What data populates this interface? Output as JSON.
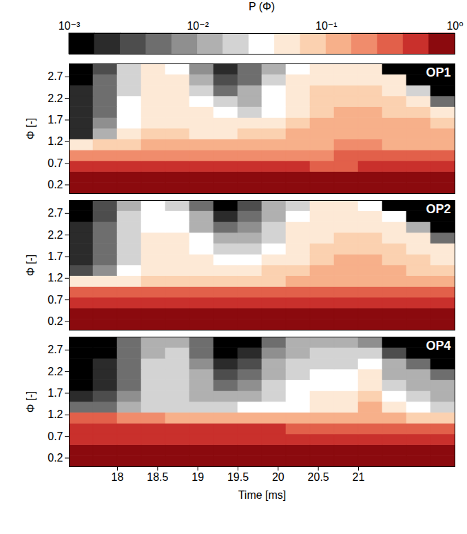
{
  "chart_data": {
    "type": "heatmap",
    "xlabel": "Time [ms]",
    "ylabel": "Φ [-]",
    "xlim": [
      17.4,
      22.2
    ],
    "ylim": [
      0,
      3
    ],
    "xticks": [
      18,
      18.5,
      19,
      19.5,
      20,
      20.5,
      21
    ],
    "yticks": [
      0.2,
      0.7,
      1.2,
      1.7,
      2.2,
      2.7
    ],
    "x_edges": [
      17.4,
      17.7,
      18,
      18.3,
      18.6,
      18.9,
      19.2,
      19.5,
      19.8,
      20.1,
      20.4,
      20.7,
      21,
      21.3,
      21.6,
      21.9,
      22.2
    ],
    "y_edges": [
      0,
      0.25,
      0.5,
      0.75,
      1,
      1.25,
      1.5,
      1.75,
      2,
      2.25,
      2.5,
      2.75,
      3
    ],
    "colorbar": {
      "label": "P (Φ)",
      "log": true,
      "range": [
        0.001,
        1
      ],
      "ticks": [
        {
          "value": 0.001,
          "label": "10⁻³"
        },
        {
          "value": 0.01,
          "label": "10⁻²"
        },
        {
          "value": 0.1,
          "label": "10⁻¹"
        },
        {
          "value": 1,
          "label": "10⁰"
        }
      ],
      "levels": [
        0.001,
        0.00158,
        0.00251,
        0.00398,
        0.00631,
        0.01,
        0.0158,
        0.0251,
        0.0398,
        0.0631,
        0.1,
        0.158,
        0.251,
        0.398,
        0.631,
        1
      ],
      "colors": [
        "#000000",
        "#2b2b2b",
        "#4d4d4d",
        "#6e6e6e",
        "#8f8f8f",
        "#b0b0b0",
        "#d3d3d3",
        "#ffffff",
        "#fde9d6",
        "#fbd1b0",
        "#f7b08a",
        "#f08c6c",
        "#e2604a",
        "#c9302c",
        "#8b0a0e"
      ]
    },
    "panels": [
      {
        "title": "OP1",
        "tick_labels": "y",
        "cells": [
          [
            0.8,
            0.8,
            0.8,
            0.8,
            0.8,
            0.8,
            0.8,
            0.8,
            0.8,
            0.8,
            0.8,
            0.8,
            0.8,
            0.8,
            0.8,
            0.8
          ],
          [
            0.7,
            0.7,
            0.7,
            0.7,
            0.7,
            0.7,
            0.7,
            0.7,
            0.7,
            0.7,
            0.7,
            0.7,
            0.7,
            0.7,
            0.7,
            0.7
          ],
          [
            0.5,
            0.5,
            0.45,
            0.45,
            0.45,
            0.45,
            0.4,
            0.4,
            0.4,
            0.4,
            0.35,
            0.35,
            0.4,
            0.4,
            0.4,
            0.4
          ],
          [
            0.2,
            0.2,
            0.2,
            0.22,
            0.22,
            0.22,
            0.25,
            0.25,
            0.25,
            0.25,
            0.25,
            0.3,
            0.3,
            0.3,
            0.3,
            0.3
          ],
          [
            0.06,
            0.07,
            0.09,
            0.1,
            0.1,
            0.1,
            0.1,
            0.1,
            0.12,
            0.12,
            0.15,
            0.18,
            0.18,
            0.15,
            0.15,
            0.15
          ],
          [
            0.002,
            0.01,
            0.04,
            0.07,
            0.07,
            0.06,
            0.06,
            0.07,
            0.08,
            0.1,
            0.12,
            0.15,
            0.15,
            0.12,
            0.12,
            0.1
          ],
          [
            0.002,
            0.008,
            0.035,
            0.06,
            0.06,
            0.055,
            0.045,
            0.04,
            0.04,
            0.07,
            0.1,
            0.12,
            0.12,
            0.1,
            0.1,
            0.08
          ],
          [
            0.002,
            0.006,
            0.03,
            0.055,
            0.055,
            0.045,
            0.03,
            0.025,
            0.03,
            0.06,
            0.09,
            0.1,
            0.1,
            0.08,
            0.08,
            0.06
          ],
          [
            0.002,
            0.005,
            0.03,
            0.05,
            0.05,
            0.035,
            0.02,
            0.015,
            0.03,
            0.06,
            0.08,
            0.08,
            0.08,
            0.07,
            0.06,
            0.005
          ],
          [
            0.002,
            0.005,
            0.025,
            0.05,
            0.045,
            0.02,
            0.006,
            0.01,
            0.03,
            0.05,
            0.07,
            0.07,
            0.07,
            0.06,
            0.02,
            0.0005
          ],
          [
            0.001,
            0.004,
            0.025,
            0.045,
            0.04,
            0.012,
            0.003,
            0.006,
            0.02,
            0.04,
            0.06,
            0.06,
            0.06,
            0.04,
            0.0005,
            0.0005
          ],
          [
            0.001,
            0.003,
            0.02,
            0.04,
            0.035,
            0.008,
            0.002,
            0.004,
            0.015,
            0.03,
            0.05,
            0.05,
            0.05,
            0.0005,
            0.0005,
            0.0005
          ]
        ]
      },
      {
        "title": "OP2",
        "tick_labels": "y",
        "cells": [
          [
            0.8,
            0.8,
            0.8,
            0.8,
            0.8,
            0.8,
            0.8,
            0.8,
            0.8,
            0.8,
            0.8,
            0.8,
            0.8,
            0.8,
            0.8,
            0.8
          ],
          [
            0.7,
            0.7,
            0.7,
            0.7,
            0.7,
            0.7,
            0.7,
            0.7,
            0.7,
            0.7,
            0.7,
            0.7,
            0.7,
            0.7,
            0.7,
            0.7
          ],
          [
            0.5,
            0.5,
            0.5,
            0.5,
            0.5,
            0.5,
            0.5,
            0.5,
            0.5,
            0.5,
            0.5,
            0.5,
            0.5,
            0.5,
            0.5,
            0.5
          ],
          [
            0.3,
            0.3,
            0.3,
            0.3,
            0.28,
            0.28,
            0.28,
            0.28,
            0.28,
            0.28,
            0.28,
            0.3,
            0.3,
            0.3,
            0.3,
            0.3
          ],
          [
            0.04,
            0.05,
            0.06,
            0.07,
            0.07,
            0.07,
            0.07,
            0.08,
            0.09,
            0.1,
            0.12,
            0.14,
            0.14,
            0.12,
            0.1,
            0.1
          ],
          [
            0.003,
            0.008,
            0.03,
            0.05,
            0.05,
            0.05,
            0.05,
            0.06,
            0.07,
            0.08,
            0.1,
            0.12,
            0.12,
            0.1,
            0.08,
            0.08
          ],
          [
            0.002,
            0.006,
            0.025,
            0.045,
            0.045,
            0.04,
            0.035,
            0.035,
            0.04,
            0.06,
            0.08,
            0.1,
            0.1,
            0.08,
            0.07,
            0.06
          ],
          [
            0.002,
            0.005,
            0.025,
            0.04,
            0.04,
            0.035,
            0.025,
            0.02,
            0.03,
            0.05,
            0.07,
            0.08,
            0.08,
            0.07,
            0.06,
            0.05
          ],
          [
            0.002,
            0.004,
            0.02,
            0.04,
            0.04,
            0.03,
            0.015,
            0.012,
            0.025,
            0.045,
            0.06,
            0.07,
            0.07,
            0.06,
            0.05,
            0.005
          ],
          [
            0.002,
            0.004,
            0.02,
            0.035,
            0.035,
            0.015,
            0.005,
            0.008,
            0.02,
            0.04,
            0.05,
            0.06,
            0.06,
            0.05,
            0.01,
            0.0005
          ],
          [
            0.0015,
            0.003,
            0.018,
            0.03,
            0.03,
            0.01,
            0.002,
            0.004,
            0.015,
            0.03,
            0.045,
            0.05,
            0.05,
            0.03,
            0.0005,
            0.0005
          ],
          [
            0.001,
            0.003,
            0.015,
            0.03,
            0.025,
            0.006,
            0.0015,
            0.003,
            0.01,
            0.025,
            0.04,
            0.04,
            0.03,
            0.0005,
            0.0005,
            0.0005
          ]
        ]
      },
      {
        "title": "OP4",
        "cells": [
          [
            0.8,
            0.8,
            0.8,
            0.8,
            0.8,
            0.8,
            0.8,
            0.8,
            0.8,
            0.8,
            0.8,
            0.8,
            0.8,
            0.8,
            0.8,
            0.8
          ],
          [
            0.75,
            0.75,
            0.75,
            0.75,
            0.75,
            0.75,
            0.75,
            0.75,
            0.75,
            0.75,
            0.75,
            0.75,
            0.75,
            0.75,
            0.75,
            0.75
          ],
          [
            0.6,
            0.6,
            0.6,
            0.6,
            0.6,
            0.6,
            0.6,
            0.6,
            0.6,
            0.6,
            0.6,
            0.6,
            0.6,
            0.6,
            0.6,
            0.6
          ],
          [
            0.4,
            0.4,
            0.4,
            0.4,
            0.4,
            0.4,
            0.4,
            0.4,
            0.4,
            0.35,
            0.35,
            0.35,
            0.35,
            0.35,
            0.35,
            0.35
          ],
          [
            0.3,
            0.3,
            0.25,
            0.2,
            0.15,
            0.12,
            0.1,
            0.1,
            0.1,
            0.1,
            0.1,
            0.12,
            0.15,
            0.1,
            0.08,
            0.08
          ],
          [
            0.005,
            0.006,
            0.01,
            0.02,
            0.025,
            0.02,
            0.02,
            0.03,
            0.03,
            0.03,
            0.04,
            0.06,
            0.1,
            0.04,
            0.03,
            0.02
          ],
          [
            0.002,
            0.003,
            0.008,
            0.02,
            0.025,
            0.015,
            0.01,
            0.015,
            0.025,
            0.03,
            0.04,
            0.05,
            0.09,
            0.03,
            0.02,
            0.015
          ],
          [
            0.001,
            0.002,
            0.006,
            0.02,
            0.025,
            0.012,
            0.006,
            0.008,
            0.02,
            0.03,
            0.035,
            0.035,
            0.06,
            0.02,
            0.015,
            0.01
          ],
          [
            0.001,
            0.002,
            0.005,
            0.018,
            0.022,
            0.01,
            0.003,
            0.004,
            0.015,
            0.025,
            0.03,
            0.03,
            0.04,
            0.015,
            0.01,
            0.006
          ],
          [
            0.001,
            0.002,
            0.005,
            0.016,
            0.02,
            0.008,
            0.002,
            0.003,
            0.01,
            0.02,
            0.025,
            0.025,
            0.03,
            0.01,
            0.005,
            0.0005
          ],
          [
            0.001,
            0.0015,
            0.004,
            0.015,
            0.018,
            0.006,
            0.0015,
            0.002,
            0.008,
            0.015,
            0.02,
            0.02,
            0.02,
            0.003,
            0.0005,
            0.0005
          ],
          [
            0.001,
            0.0015,
            0.004,
            0.012,
            0.015,
            0.004,
            0.001,
            0.0015,
            0.006,
            0.012,
            0.015,
            0.01,
            0.008,
            0.0005,
            0.0005,
            0.0005
          ]
        ]
      }
    ]
  }
}
